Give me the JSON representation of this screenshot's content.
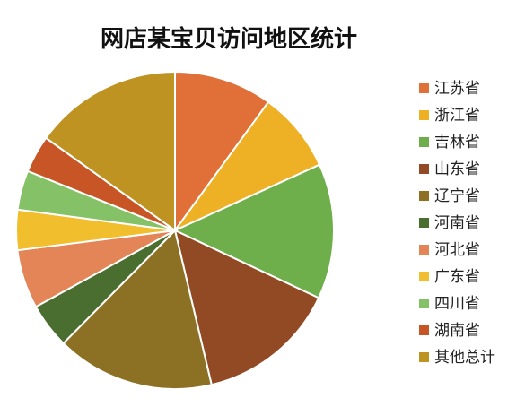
{
  "chart_data": {
    "type": "pie",
    "title": "网店某宝贝访问地区统计",
    "legend_position": "right",
    "start_angle_degrees": 90,
    "direction": "clockwise",
    "slices": [
      {
        "name": "江苏省",
        "value": 10.0,
        "color": "#E07038"
      },
      {
        "name": "浙江省",
        "value": 8.2,
        "color": "#EEB024"
      },
      {
        "name": "吉林省",
        "value": 13.8,
        "color": "#6FAF4B"
      },
      {
        "name": "山东省",
        "value": 14.3,
        "color": "#924A24"
      },
      {
        "name": "辽宁省",
        "value": 16.1,
        "color": "#8C7023"
      },
      {
        "name": "河南省",
        "value": 4.6,
        "color": "#4A6E2F"
      },
      {
        "name": "河北省",
        "value": 6.0,
        "color": "#E48557"
      },
      {
        "name": "广东省",
        "value": 4.1,
        "color": "#F1BE2E"
      },
      {
        "name": "四川省",
        "value": 4.0,
        "color": "#85C166"
      },
      {
        "name": "湖南省",
        "value": 3.8,
        "color": "#C85525"
      },
      {
        "name": "其他总计",
        "value": 15.1,
        "color": "#BE9322"
      }
    ]
  }
}
